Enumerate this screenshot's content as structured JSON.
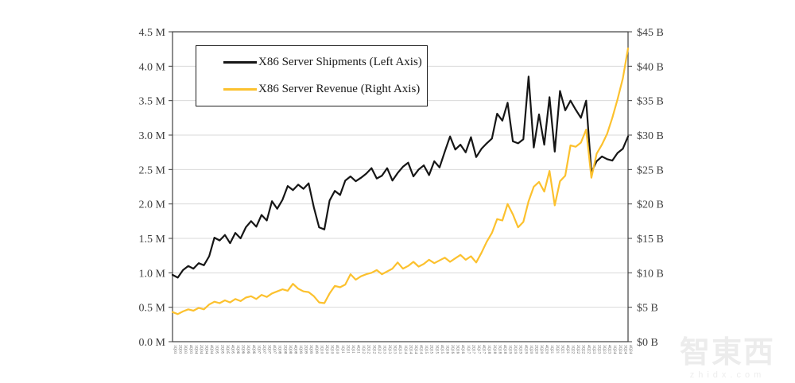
{
  "page": {
    "background": "#ffffff"
  },
  "legend": {
    "items": [
      {
        "label": "X86 Server Shipments (Left Axis)",
        "color": "#161616"
      },
      {
        "label": "X86 Server Revenue (Right Axis)",
        "color": "#FCC12E"
      }
    ]
  },
  "watermark": {
    "logo_text": "智東西",
    "url_text": "zhidx.com"
  },
  "chart_data": {
    "type": "line",
    "title": "",
    "grid": true,
    "legend_position": "top-left-inside",
    "colors": {
      "gridline": "#d9d9d9",
      "plot_border": "#3f3f3f",
      "axis_tick": "#3f3f3f",
      "axis_label": "#404040",
      "x_label": "#595959"
    },
    "left_axis": {
      "min": 0,
      "max": 4.5,
      "step": 0.5,
      "unit": "M",
      "tick_labels": [
        "4.5 M",
        "4.0 M",
        "3.5 M",
        "3.0 M",
        "2.5 M",
        "2.0 M",
        "1.5 M",
        "1.0 M",
        "0.5 M",
        "0.0 M"
      ]
    },
    "right_axis": {
      "min": 0,
      "max": 45,
      "step": 5,
      "unit": "$B",
      "tick_labels": [
        "$45 B",
        "$40 B",
        "$35 B",
        "$30 B",
        "$25 B",
        "$20 B",
        "$15 B",
        "$10 B",
        "$5 B",
        "$0 B"
      ]
    },
    "x_categories": [
      "1Q03",
      "2Q03",
      "3Q03",
      "4Q03",
      "1Q04",
      "2Q04",
      "3Q04",
      "4Q04",
      "1Q05",
      "2Q05",
      "3Q05",
      "4Q05",
      "1Q06",
      "2Q06",
      "3Q06",
      "4Q06",
      "1Q07",
      "2Q07",
      "3Q07",
      "4Q07",
      "1Q08",
      "2Q08",
      "3Q08",
      "4Q08",
      "1Q09",
      "2Q09",
      "3Q09",
      "4Q09",
      "1Q10",
      "2Q10",
      "3Q10",
      "4Q10",
      "1Q11",
      "2Q11",
      "3Q11",
      "4Q11",
      "1Q12",
      "2Q12",
      "3Q12",
      "4Q12",
      "1Q13",
      "2Q13",
      "3Q13",
      "4Q13",
      "1Q14",
      "2Q14",
      "3Q14",
      "4Q14",
      "1Q15",
      "2Q15",
      "3Q15",
      "4Q15",
      "1Q16",
      "2Q16",
      "3Q16",
      "4Q16",
      "1Q17",
      "2Q17",
      "3Q17",
      "4Q17",
      "1Q18",
      "2Q18",
      "3Q18",
      "4Q18",
      "1Q19",
      "2Q19",
      "3Q19",
      "4Q19",
      "1Q20",
      "2Q20",
      "3Q20",
      "4Q20",
      "1Q21",
      "2Q21",
      "3Q21",
      "4Q21",
      "1Q22",
      "2Q22",
      "3Q22",
      "4Q22",
      "1Q23",
      "2Q23",
      "3Q23",
      "4Q23",
      "1Q24",
      "2Q24",
      "3Q24",
      "4Q24"
    ],
    "series": [
      {
        "name": "X86 Server Shipments",
        "legend_label": "X86 Server Shipments (Left Axis)",
        "axis": "left",
        "unit": "millions of units per quarter",
        "color": "#161616",
        "values": [
          0.97,
          0.93,
          1.04,
          1.1,
          1.06,
          1.14,
          1.11,
          1.24,
          1.51,
          1.47,
          1.55,
          1.43,
          1.58,
          1.5,
          1.66,
          1.75,
          1.67,
          1.84,
          1.76,
          2.04,
          1.93,
          2.06,
          2.26,
          2.2,
          2.28,
          2.22,
          2.3,
          1.95,
          1.66,
          1.63,
          2.05,
          2.19,
          2.13,
          2.34,
          2.4,
          2.33,
          2.38,
          2.44,
          2.52,
          2.37,
          2.41,
          2.52,
          2.34,
          2.45,
          2.54,
          2.6,
          2.4,
          2.5,
          2.56,
          2.42,
          2.62,
          2.53,
          2.76,
          2.98,
          2.79,
          2.86,
          2.75,
          2.97,
          2.68,
          2.8,
          2.88,
          2.95,
          3.31,
          3.21,
          3.47,
          2.91,
          2.88,
          2.94,
          3.85,
          2.82,
          3.3,
          2.86,
          3.55,
          2.76,
          3.64,
          3.36,
          3.5,
          3.37,
          3.25,
          3.5,
          2.46,
          2.62,
          2.69,
          2.65,
          2.63,
          2.74,
          2.8,
          2.98
        ]
      },
      {
        "name": "X86 Server Revenue",
        "legend_label": "X86 Server Revenue (Right Axis)",
        "axis": "right",
        "unit": "billions of US dollars per quarter",
        "color": "#FCC12E",
        "values": [
          4.3,
          4.0,
          4.4,
          4.7,
          4.5,
          4.9,
          4.7,
          5.4,
          5.8,
          5.6,
          6.0,
          5.7,
          6.2,
          5.9,
          6.4,
          6.6,
          6.2,
          6.8,
          6.5,
          7.0,
          7.3,
          7.6,
          7.4,
          8.4,
          7.7,
          7.3,
          7.2,
          6.6,
          5.7,
          5.6,
          7.0,
          8.1,
          7.9,
          8.3,
          9.8,
          9.0,
          9.5,
          9.8,
          10.0,
          10.4,
          9.8,
          10.2,
          10.6,
          11.5,
          10.6,
          11.0,
          11.6,
          10.9,
          11.3,
          11.9,
          11.4,
          11.8,
          12.2,
          11.6,
          12.1,
          12.6,
          11.9,
          12.4,
          11.5,
          12.9,
          14.5,
          15.8,
          17.8,
          17.6,
          20.0,
          18.5,
          16.6,
          17.4,
          20.4,
          22.5,
          23.2,
          21.8,
          24.8,
          19.8,
          23.3,
          24.1,
          28.5,
          28.3,
          28.9,
          30.8,
          23.8,
          27.3,
          28.6,
          30.2,
          32.5,
          35.2,
          38.2,
          42.6
        ]
      }
    ]
  }
}
